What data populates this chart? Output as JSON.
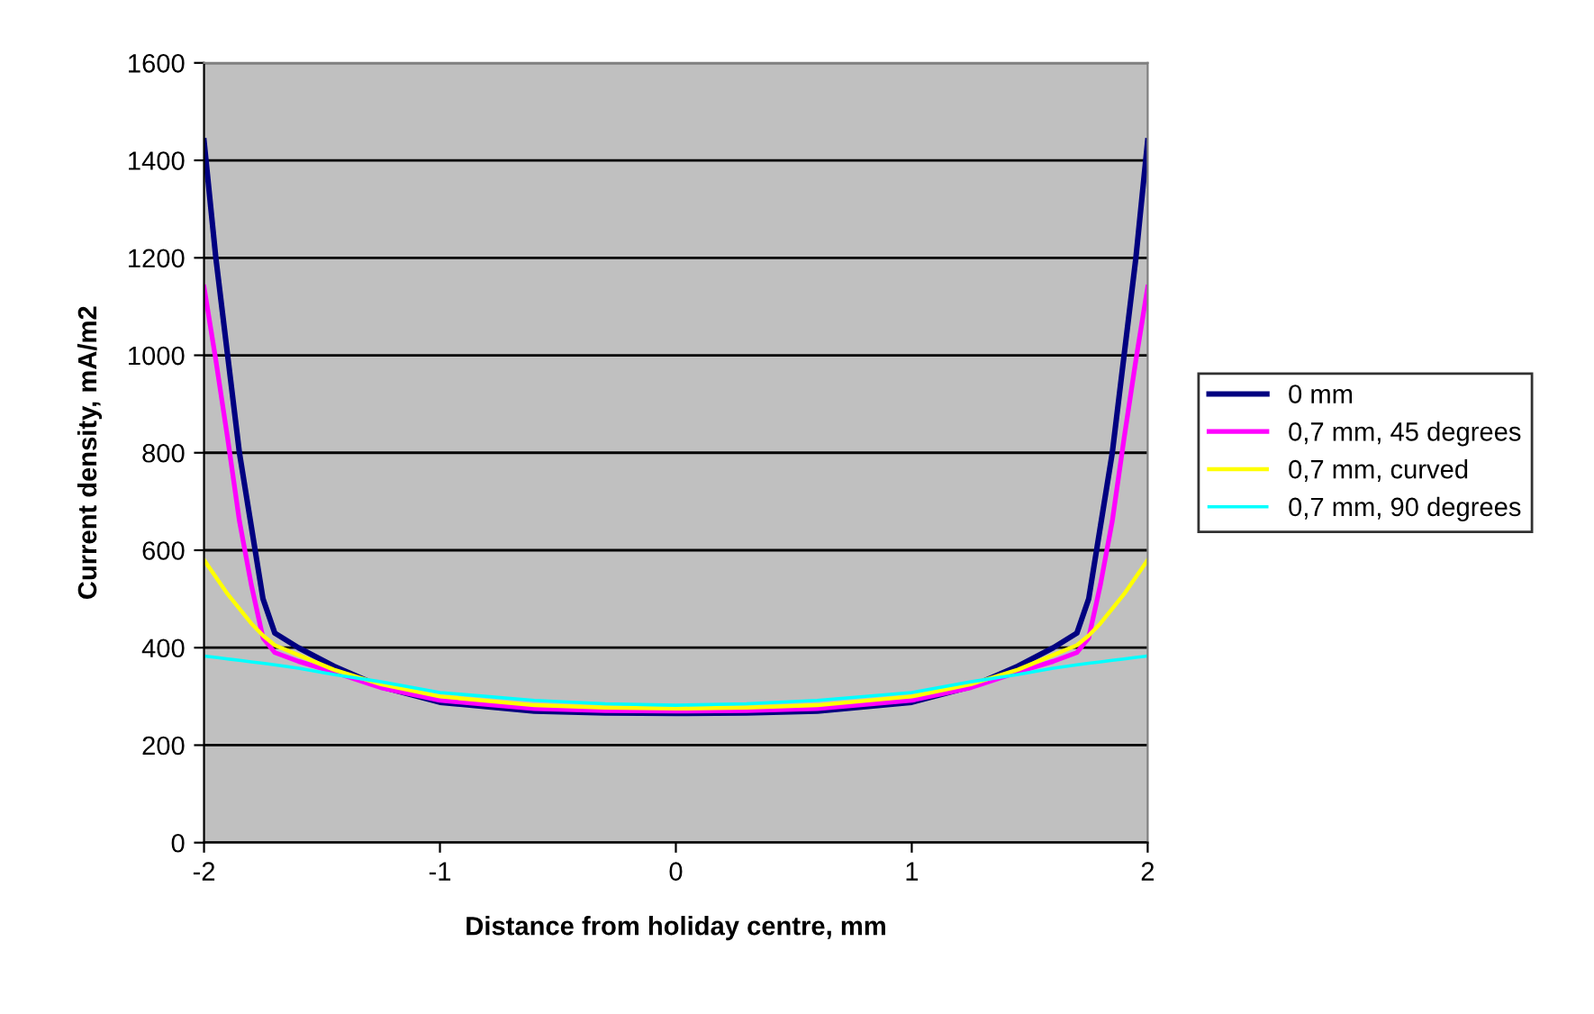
{
  "chart_data": {
    "type": "line",
    "xlabel": "Distance from holiday centre, mm",
    "ylabel": "Current density, mA/m2",
    "x": [
      -2,
      -1.95,
      -1.9,
      -1.85,
      -1.8,
      -1.75,
      -1.7,
      -1.6,
      -1.45,
      -1.25,
      -1,
      -0.6,
      -0.3,
      0,
      0.3,
      0.6,
      1,
      1.25,
      1.45,
      1.6,
      1.7,
      1.75,
      1.8,
      1.85,
      1.9,
      1.95,
      2
    ],
    "series": [
      {
        "name": "0 mm",
        "color": "#000080",
        "values": [
          1440,
          1200,
          1000,
          800,
          650,
          500,
          430,
          400,
          362,
          320,
          288,
          270,
          266,
          265,
          266,
          270,
          288,
          320,
          362,
          400,
          430,
          500,
          650,
          800,
          1000,
          1200,
          1440
        ]
      },
      {
        "name": "0,7 mm, 45 degrees",
        "color": "#ff00ff",
        "values": [
          1140,
          990,
          830,
          660,
          530,
          420,
          390,
          372,
          350,
          318,
          292,
          275,
          271,
          270,
          271,
          275,
          292,
          318,
          350,
          372,
          390,
          420,
          530,
          660,
          830,
          990,
          1140
        ]
      },
      {
        "name": "0,7 mm, curved",
        "color": "#ffff00",
        "values": [
          580,
          545,
          510,
          480,
          450,
          425,
          405,
          385,
          355,
          325,
          300,
          282,
          277,
          275,
          277,
          282,
          300,
          325,
          355,
          385,
          405,
          425,
          450,
          480,
          510,
          545,
          580
        ]
      },
      {
        "name": "0,7 mm, 90 degrees",
        "color": "#00ffff",
        "values": [
          383,
          380,
          377,
          374,
          371,
          368,
          365,
          358,
          345,
          330,
          308,
          292,
          285,
          282,
          285,
          292,
          308,
          330,
          345,
          358,
          365,
          368,
          371,
          374,
          377,
          380,
          383
        ]
      }
    ],
    "xlim": [
      -2,
      2
    ],
    "xticks": [
      -2,
      -1,
      0,
      1,
      2
    ],
    "ylim": [
      0,
      1600
    ],
    "yticks": [
      0,
      200,
      400,
      600,
      800,
      1000,
      1200,
      1400,
      1600
    ],
    "grid": "y",
    "legend": "right",
    "marker": "none",
    "line_style": "solid"
  }
}
